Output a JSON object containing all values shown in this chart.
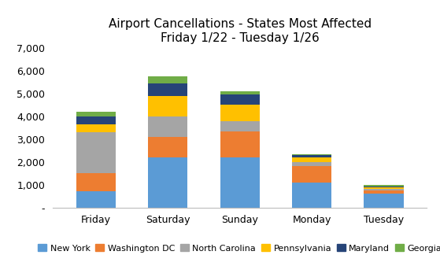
{
  "title_line1": "Airport Cancellations - States Most Affected",
  "title_line2": "Friday 1/22 - Tuesday 1/26",
  "categories": [
    "Friday",
    "Saturday",
    "Sunday",
    "Monday",
    "Tuesday"
  ],
  "series": {
    "New York": [
      700,
      2200,
      2200,
      1100,
      600
    ],
    "Washington DC": [
      800,
      900,
      1150,
      700,
      150
    ],
    "North Carolina": [
      1800,
      900,
      450,
      200,
      70
    ],
    "Pennsylvania": [
      350,
      900,
      700,
      200,
      60
    ],
    "Maryland": [
      350,
      550,
      450,
      100,
      50
    ],
    "Georgia": [
      200,
      300,
      150,
      50,
      50
    ]
  },
  "series_colors": {
    "New York": "#5B9BD5",
    "Washington DC": "#ED7D31",
    "North Carolina": "#A5A5A5",
    "Pennsylvania": "#FFC000",
    "Maryland": "#264478",
    "Georgia": "#70AD47"
  },
  "ylim": [
    0,
    7000
  ],
  "yticks": [
    0,
    1000,
    2000,
    3000,
    4000,
    5000,
    6000,
    7000
  ],
  "ytick_labels": [
    "-",
    "1,000",
    "2,000",
    "3,000",
    "4,000",
    "5,000",
    "6,000",
    "7,000"
  ],
  "background_color": "#FFFFFF",
  "bar_width": 0.55,
  "title_fontsize": 11,
  "tick_fontsize": 9,
  "legend_fontsize": 8
}
